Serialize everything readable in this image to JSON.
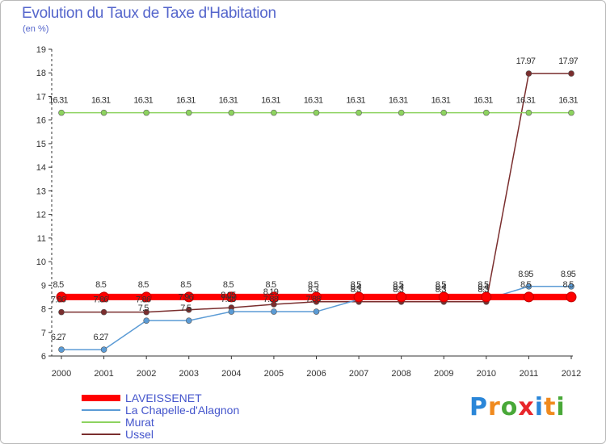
{
  "title": "Evolution du Taux de Taxe d'Habitation",
  "subtitle": "(en %)",
  "logo": {
    "text": "Proxiti",
    "letters": [
      {
        "ch": "P",
        "color": "#2a86d8"
      },
      {
        "ch": "r",
        "color": "#f08a1e"
      },
      {
        "ch": "o",
        "color": "#49a838"
      },
      {
        "ch": "x",
        "color": "#e8262b"
      },
      {
        "ch": "i",
        "color": "#2a86d8"
      },
      {
        "ch": "t",
        "color": "#f08a1e"
      },
      {
        "ch": "i",
        "color": "#49a838"
      }
    ]
  },
  "chart_data": {
    "type": "line",
    "title": "Evolution du Taux de Taxe d'Habitation",
    "ylabel": "(en %)",
    "xlabel": "",
    "ylim": [
      6,
      19
    ],
    "yticks": [
      "6",
      "7",
      "8",
      "9",
      "10",
      "11",
      "12",
      "13",
      "14",
      "15",
      "16",
      "17",
      "18",
      "19"
    ],
    "grid": false,
    "legend_position": "bottom-left",
    "categories": [
      "2000",
      "2001",
      "2002",
      "2003",
      "2004",
      "2005",
      "2006",
      "2007",
      "2008",
      "2009",
      "2010",
      "2011",
      "2012"
    ],
    "series": [
      {
        "name": "LAVEISSENET",
        "color": "#ff0000",
        "values": [
          8.5,
          8.5,
          8.5,
          8.5,
          8.5,
          8.5,
          8.5,
          8.5,
          8.5,
          8.5,
          8.5,
          8.5,
          8.5
        ],
        "labels": [
          "8.5",
          "8.5",
          "8.5",
          "8.5",
          "8.5",
          "8.5",
          "8.5",
          "8.5",
          "8.5",
          "8.5",
          "8.5",
          "8.5",
          "8.5"
        ]
      },
      {
        "name": "La Chapelle-d'Alagnon",
        "color": "#5b9bd5",
        "values": [
          6.27,
          6.27,
          7.5,
          7.5,
          7.88,
          7.88,
          7.88,
          8.4,
          8.4,
          8.4,
          8.4,
          8.95,
          8.95
        ],
        "labels": [
          "6.27",
          "6.27",
          "7.5",
          "7.5",
          "7.88",
          "7.88",
          "7.88",
          "8.4",
          "8.4",
          "8.4",
          "8.4",
          "8.95",
          "8.95"
        ]
      },
      {
        "name": "Murat",
        "color": "#8dd35f",
        "values": [
          16.31,
          16.31,
          16.31,
          16.31,
          16.31,
          16.31,
          16.31,
          16.31,
          16.31,
          16.31,
          16.31,
          16.31,
          16.31
        ],
        "labels": [
          "16.31",
          "16.31",
          "16.31",
          "16.31",
          "16.31",
          "16.31",
          "16.31",
          "16.31",
          "16.31",
          "16.31",
          "16.31",
          "16.31",
          "16.31"
        ]
      },
      {
        "name": "Ussel",
        "color": "#7a2e2e",
        "values": [
          7.86,
          7.86,
          7.86,
          7.96,
          8.05,
          8.19,
          8.3,
          8.3,
          8.3,
          8.3,
          8.3,
          17.97,
          17.97
        ],
        "labels": [
          "7.86",
          "7.86",
          "7.86",
          "7.96",
          "8.05",
          "8.19",
          "8.3",
          "8.3",
          "8.3",
          "8.3",
          "8.3",
          "17.97",
          "17.97"
        ]
      }
    ]
  }
}
